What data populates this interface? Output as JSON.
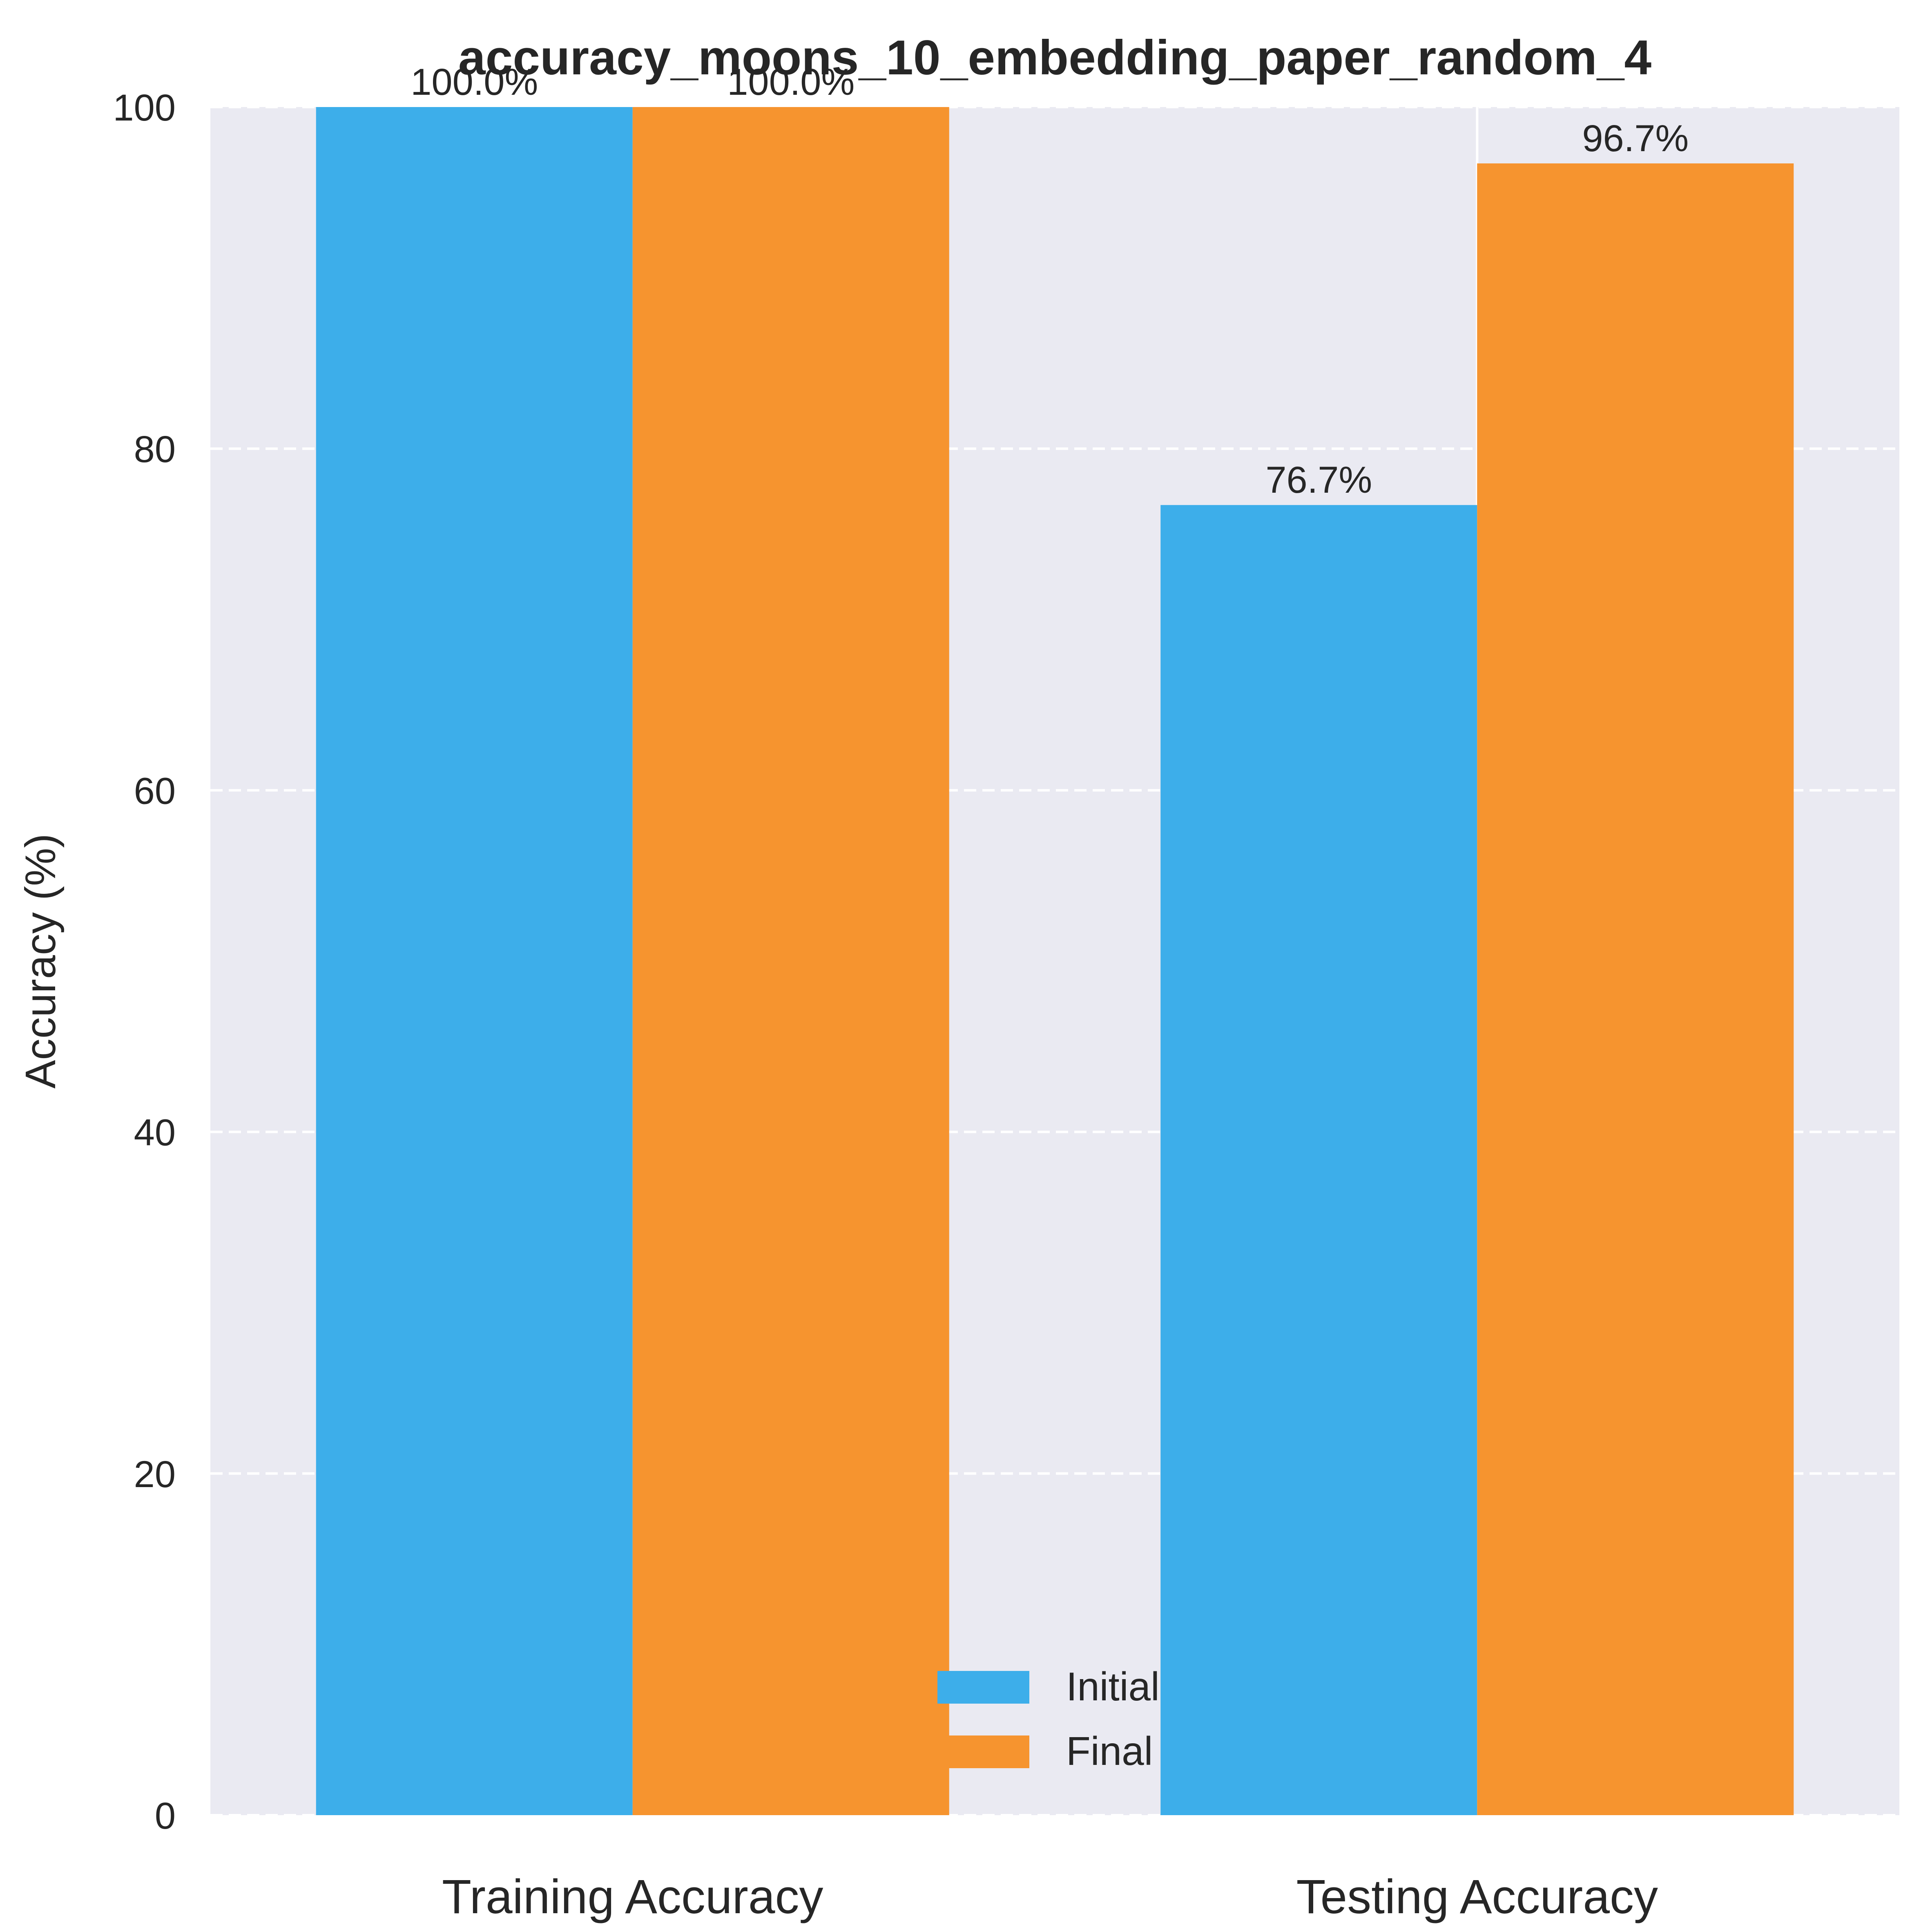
{
  "chart_data": {
    "type": "bar",
    "title": "accuracy_moons_10_embedding_paper_random_4",
    "xlabel": "",
    "ylabel": "Accuracy (%)",
    "categories": [
      "Training Accuracy",
      "Testing Accuracy"
    ],
    "ylim": [
      0,
      100
    ],
    "yticks": [
      0,
      20,
      40,
      60,
      80,
      100
    ],
    "grid": true,
    "legend_position": "bottom-center",
    "series": [
      {
        "name": "Initial",
        "color": "#3daeea",
        "values": [
          100.0,
          76.7
        ],
        "labels": [
          "100.0%",
          "76.7%"
        ]
      },
      {
        "name": "Final",
        "color": "#f6942f",
        "values": [
          100.0,
          96.7
        ],
        "labels": [
          "100.0%",
          "96.7%"
        ]
      }
    ],
    "background_color": "#eaeaf2",
    "grid_color": "#ffffff"
  }
}
